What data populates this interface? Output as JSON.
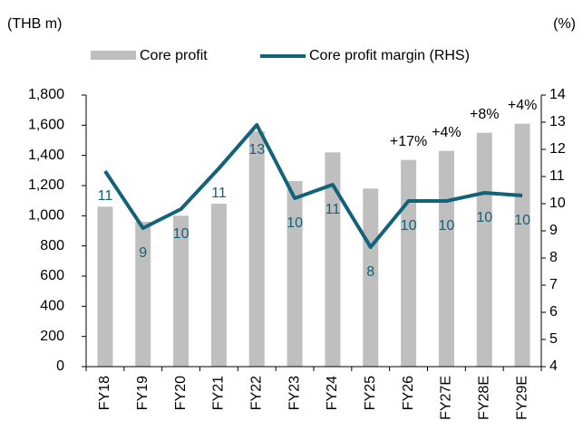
{
  "chart_data": {
    "type": "bar_line",
    "y_unit": "(THB m)",
    "y2_unit": "(%)",
    "categories": [
      "FY18",
      "FY19",
      "FY20",
      "FY21",
      "FY22",
      "FY23",
      "FY24",
      "FY25",
      "FY26",
      "FY27E",
      "FY28E",
      "FY29E"
    ],
    "series": [
      {
        "name": "Core profit",
        "type": "bar",
        "color": "#bfbfbf",
        "values": [
          1060,
          960,
          1000,
          1080,
          1560,
          1230,
          1420,
          1180,
          1370,
          1430,
          1550,
          1610
        ]
      },
      {
        "name": "Core profit margin (RHS)",
        "type": "line",
        "axis": "y2",
        "color": "#12627a",
        "values": [
          11.2,
          9.1,
          9.8,
          11.3,
          12.9,
          10.2,
          10.7,
          8.4,
          10.1,
          10.1,
          10.4,
          10.3
        ],
        "value_labels": [
          "11",
          "9",
          "10",
          "11",
          "13",
          "10",
          "11",
          "8",
          "10",
          "10",
          "10",
          "10"
        ]
      }
    ],
    "growth_labels": [
      null,
      null,
      null,
      null,
      null,
      null,
      null,
      null,
      "+17%",
      "+4%",
      "+8%",
      "+4%"
    ],
    "ylim": [
      0,
      1800
    ],
    "yticks": [
      0,
      200,
      400,
      600,
      800,
      {
        "value": 1000,
        "label": "1,000"
      },
      {
        "value": 1200,
        "label": "1,200"
      },
      {
        "value": 1400,
        "label": "1,400"
      },
      {
        "value": 1600,
        "label": "1,600"
      },
      {
        "value": 1800,
        "label": "1,800"
      }
    ],
    "y2lim": [
      4,
      14
    ],
    "y2ticks": [
      4,
      5,
      6,
      7,
      8,
      9,
      10,
      11,
      12,
      13,
      14
    ]
  }
}
